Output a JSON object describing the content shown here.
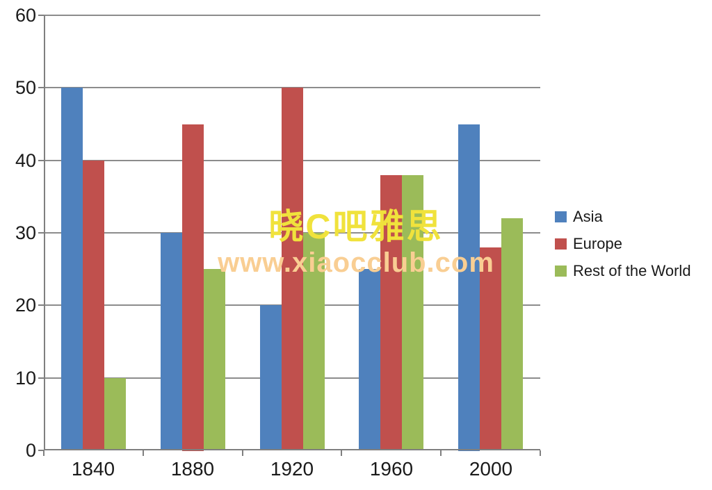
{
  "chart_data": {
    "type": "bar",
    "categories": [
      "1840",
      "1880",
      "1920",
      "1960",
      "2000"
    ],
    "series": [
      {
        "name": "Asia",
        "color": "#4F81BD",
        "values": [
          50,
          30,
          20,
          25,
          45
        ]
      },
      {
        "name": "Europe",
        "color": "#C0504D",
        "values": [
          40,
          45,
          50,
          38,
          28
        ]
      },
      {
        "name": "Rest of the World",
        "color": "#9BBB59",
        "values": [
          10,
          25,
          30,
          38,
          32
        ]
      }
    ],
    "title": "",
    "xlabel": "",
    "ylabel": "",
    "ylim": [
      0,
      60
    ],
    "ytick_step": 10,
    "ytick_labels": [
      "0",
      "10",
      "20",
      "30",
      "40",
      "50",
      "60"
    ],
    "grid": true,
    "legend_position": "right"
  },
  "watermark": {
    "line1": "晓C吧雅思",
    "line2": "www.xiaocclub.com"
  },
  "colors": {
    "gridline": "#8C8C8C",
    "axis": "#7F7F7F",
    "text": "#1A1A1A",
    "watermark_line1": "#F0E23C",
    "watermark_line2": "#F9CE93"
  }
}
